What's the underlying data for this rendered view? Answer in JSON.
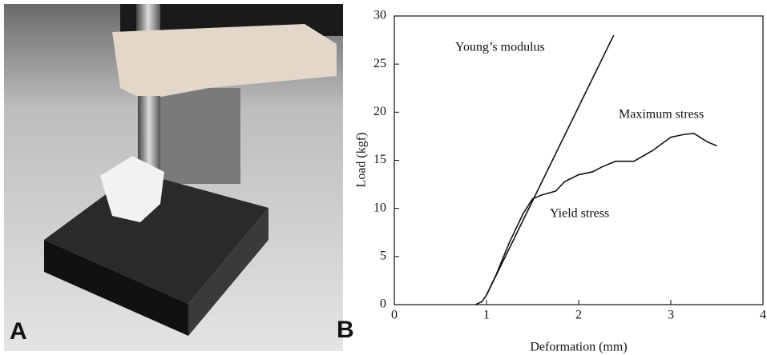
{
  "photo_panel": {
    "label": "A"
  },
  "chart_data": {
    "type": "line",
    "panel_label": "B",
    "x_label": "Deformation (mm)",
    "y_label": "Load (kgf)",
    "annotations": [
      "Young’s modulus",
      "Maximum stress",
      "Yield stress"
    ],
    "series": [
      {
        "color": "#111111",
        "x": [
          1.0,
          2.38
        ],
        "values": [
          1,
          28
        ]
      },
      {
        "color": "#111111",
        "x": [
          0.88,
          0.95,
          1.0,
          1.1,
          1.25,
          1.4,
          1.5,
          1.6,
          1.75,
          1.85,
          2.0,
          2.15,
          2.25,
          2.4,
          2.6,
          2.8,
          3.0,
          3.15,
          3.25,
          3.4,
          3.5
        ],
        "values": [
          0,
          0.3,
          1,
          3,
          6.5,
          9.5,
          11,
          11.4,
          11.8,
          12.8,
          13.5,
          13.8,
          14.3,
          14.9,
          14.9,
          16,
          17.4,
          17.7,
          17.8,
          16.9,
          16.5
        ]
      }
    ],
    "xlim": [
      0,
      4
    ],
    "xticks": [
      0,
      1,
      2,
      3,
      4
    ],
    "ylim": [
      0,
      30
    ],
    "yticks": [
      0,
      5,
      10,
      15,
      20,
      25,
      30
    ]
  }
}
